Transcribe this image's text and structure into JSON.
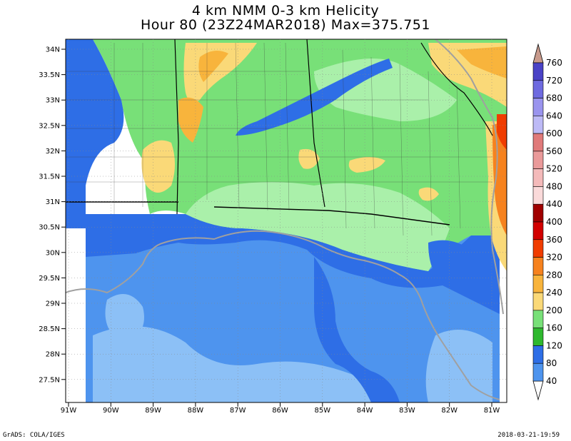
{
  "title_line1": "4 km NMM 0-3 km Helicity",
  "title_line2": "Hour 80 (23Z24MAR2018) Max=375.751",
  "lat_labels": [
    "34N",
    "33.5N",
    "33N",
    "32.5N",
    "32N",
    "31.5N",
    "31N",
    "30.5N",
    "30N",
    "29.5N",
    "29N",
    "28.5N",
    "28N",
    "27.5N"
  ],
  "lon_labels": [
    "91W",
    "90W",
    "89W",
    "88W",
    "87W",
    "86W",
    "85W",
    "84W",
    "83W",
    "82W",
    "81W"
  ],
  "colorbar": {
    "labels": [
      "760",
      "720",
      "680",
      "640",
      "600",
      "560",
      "520",
      "480",
      "440",
      "400",
      "360",
      "320",
      "280",
      "240",
      "200",
      "160",
      "120",
      "80",
      "40"
    ],
    "colors": [
      "#4a42c6",
      "#6e6ae0",
      "#9a94ee",
      "#bdbaf6",
      "#e07a7a",
      "#ea9a9a",
      "#f4baba",
      "#fadada",
      "#a00000",
      "#d20000",
      "#f03c00",
      "#f6821e",
      "#f8b43c",
      "#fad978",
      "#78e078",
      "#2eb82e",
      "#2e6ee6",
      "#4e94ee",
      "#8cc0f6"
    ]
  },
  "footer_left": "GrADS: COLA/IGES",
  "footer_right": "2018-03-21-19:59",
  "max_value": 375.751
}
